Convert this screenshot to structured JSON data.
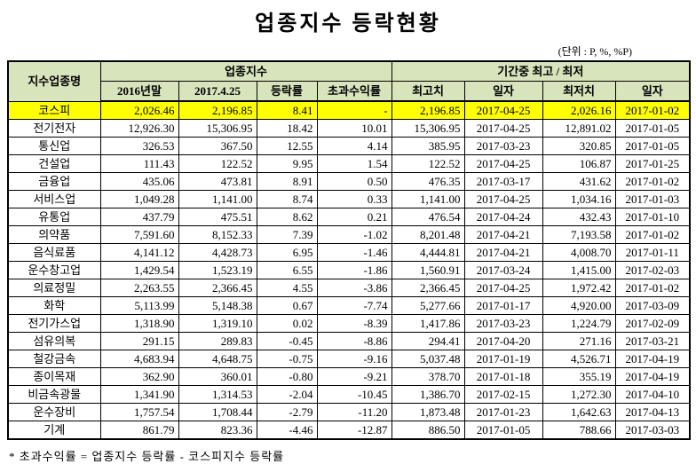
{
  "title": "업종지수 등락현황",
  "units_note": "(단위 : P, %, %P)",
  "footnote": "* 초과수익률 = 업종지수 등락률 - 코스피지수 등락률",
  "colors": {
    "header_bg": "#d7e4bc",
    "highlight_bg": "#ffff00",
    "border": "#000000"
  },
  "table": {
    "header": {
      "col_sector": "지수업종명",
      "group_index": "업종지수",
      "group_period": "기간중 최고 / 최저",
      "sub": [
        "2016년말",
        "2017.4.25",
        "등락률",
        "초과수익률",
        "최고치",
        "일자",
        "최저치",
        "일자"
      ]
    },
    "rows": [
      {
        "name": "코스피",
        "highlight": true,
        "values": [
          "2,026.46",
          "2,196.85",
          "8.41",
          "-",
          "2,196.85",
          "2017-04-25",
          "2,026.16",
          "2017-01-02"
        ]
      },
      {
        "name": "전기전자",
        "highlight": false,
        "values": [
          "12,926.30",
          "15,306.95",
          "18.42",
          "10.01",
          "15,306.95",
          "2017-04-25",
          "12,891.02",
          "2017-01-05"
        ]
      },
      {
        "name": "통신업",
        "highlight": false,
        "values": [
          "326.53",
          "367.50",
          "12.55",
          "4.14",
          "385.95",
          "2017-03-23",
          "320.85",
          "2017-01-05"
        ]
      },
      {
        "name": "건설업",
        "highlight": false,
        "values": [
          "111.43",
          "122.52",
          "9.95",
          "1.54",
          "122.52",
          "2017-04-25",
          "106.87",
          "2017-01-25"
        ]
      },
      {
        "name": "금융업",
        "highlight": false,
        "values": [
          "435.06",
          "473.81",
          "8.91",
          "0.50",
          "476.35",
          "2017-03-17",
          "431.62",
          "2017-01-02"
        ]
      },
      {
        "name": "서비스업",
        "highlight": false,
        "values": [
          "1,049.28",
          "1,141.00",
          "8.74",
          "0.33",
          "1,141.00",
          "2017-04-25",
          "1,034.16",
          "2017-01-03"
        ]
      },
      {
        "name": "유통업",
        "highlight": false,
        "values": [
          "437.79",
          "475.51",
          "8.62",
          "0.21",
          "476.54",
          "2017-04-24",
          "432.43",
          "2017-01-10"
        ]
      },
      {
        "name": "의약품",
        "highlight": false,
        "values": [
          "7,591.60",
          "8,152.33",
          "7.39",
          "-1.02",
          "8,201.48",
          "2017-04-21",
          "7,193.58",
          "2017-01-02"
        ]
      },
      {
        "name": "음식료품",
        "highlight": false,
        "values": [
          "4,141.12",
          "4,428.73",
          "6.95",
          "-1.46",
          "4,444.81",
          "2017-04-21",
          "4,008.70",
          "2017-01-11"
        ]
      },
      {
        "name": "운수창고업",
        "highlight": false,
        "values": [
          "1,429.54",
          "1,523.19",
          "6.55",
          "-1.86",
          "1,560.91",
          "2017-03-24",
          "1,415.00",
          "2017-02-03"
        ]
      },
      {
        "name": "의료정밀",
        "highlight": false,
        "values": [
          "2,263.55",
          "2,366.45",
          "4.55",
          "-3.86",
          "2,366.45",
          "2017-04-25",
          "1,972.42",
          "2017-01-02"
        ]
      },
      {
        "name": "화학",
        "highlight": false,
        "values": [
          "5,113.99",
          "5,148.38",
          "0.67",
          "-7.74",
          "5,277.66",
          "2017-01-17",
          "4,920.00",
          "2017-03-09"
        ]
      },
      {
        "name": "전기가스업",
        "highlight": false,
        "values": [
          "1,318.90",
          "1,319.10",
          "0.02",
          "-8.39",
          "1,417.86",
          "2017-03-23",
          "1,224.79",
          "2017-02-09"
        ]
      },
      {
        "name": "섬유의복",
        "highlight": false,
        "values": [
          "291.15",
          "289.83",
          "-0.45",
          "-8.86",
          "294.41",
          "2017-04-20",
          "271.16",
          "2017-03-21"
        ]
      },
      {
        "name": "철강금속",
        "highlight": false,
        "values": [
          "4,683.94",
          "4,648.75",
          "-0.75",
          "-9.16",
          "5,037.48",
          "2017-01-19",
          "4,526.71",
          "2017-04-19"
        ]
      },
      {
        "name": "종이목재",
        "highlight": false,
        "values": [
          "362.90",
          "360.01",
          "-0.80",
          "-9.21",
          "378.70",
          "2017-01-18",
          "355.19",
          "2017-04-19"
        ]
      },
      {
        "name": "비금속광물",
        "highlight": false,
        "values": [
          "1,341.90",
          "1,314.53",
          "-2.04",
          "-10.45",
          "1,386.70",
          "2017-02-15",
          "1,272.30",
          "2017-04-10"
        ]
      },
      {
        "name": "운수장비",
        "highlight": false,
        "values": [
          "1,757.54",
          "1,708.44",
          "-2.79",
          "-11.20",
          "1,873.48",
          "2017-01-23",
          "1,642.63",
          "2017-04-13"
        ]
      },
      {
        "name": "기계",
        "highlight": false,
        "values": [
          "861.79",
          "823.36",
          "-4.46",
          "-12.87",
          "886.50",
          "2017-01-05",
          "788.66",
          "2017-03-03"
        ]
      }
    ]
  }
}
